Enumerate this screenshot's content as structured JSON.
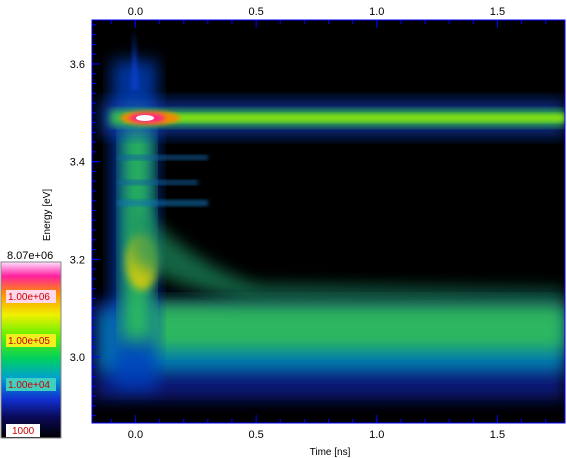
{
  "chart_data": {
    "type": "heatmap",
    "title": "",
    "xlabel": "Time [ns]",
    "ylabel": "Energy [eV]",
    "xlim": [
      -0.18,
      1.78
    ],
    "ylim": [
      2.865,
      3.69
    ],
    "x_ticks": [
      {
        "value": 0.0,
        "label": "0.0"
      },
      {
        "value": 0.5,
        "label": "0.5"
      },
      {
        "value": 1.0,
        "label": "1.0"
      },
      {
        "value": 1.5,
        "label": "1.5"
      }
    ],
    "y_ticks": [
      {
        "value": 3.0,
        "label": "3.0"
      },
      {
        "value": 3.2,
        "label": "3.2"
      },
      {
        "value": 3.4,
        "label": "3.4"
      },
      {
        "value": 3.6,
        "label": "3.6"
      }
    ],
    "colorbar": {
      "scale": "log",
      "min": 1000,
      "max": 8070000,
      "min_label": "1000",
      "max_label": "8.07e+06",
      "tick_labels": [
        "1.00e+06",
        "1.00e+05",
        "1.00e+04"
      ]
    },
    "features": [
      {
        "name": "",
        "peak_energy_eV": 3.48,
        "peak_time_ns": 0.03,
        "peak_intensity": 8000000
      },
      {
        "name": "",
        "peak_energy_eV": 3.02,
        "peak_time_ns": 0.05,
        "peak_intensity": 100000
      }
    ]
  }
}
